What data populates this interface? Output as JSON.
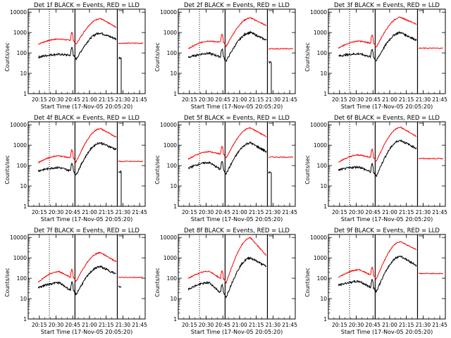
{
  "chart_data": {
    "type": "line",
    "time_ticks": [
      "20:15",
      "20:30",
      "20:45",
      "21:00",
      "21:15",
      "21:30",
      "21:45"
    ],
    "y_ticks": [
      "1",
      "10",
      "100",
      "1000",
      "10000"
    ],
    "ylabel": "Counts/sec",
    "xlabel": "Start Time (17-Nov-05 20:05:20)",
    "series_colors": {
      "events": "#000000",
      "lld": "#ff0000"
    },
    "time_range": [
      "20:05",
      "21:50"
    ],
    "ylim": [
      1,
      14000
    ],
    "vertical_markers": {
      "dotted": [
        "20:24"
      ],
      "solid": [
        "20:47",
        "21:25"
      ],
      "event_dotted_times": [
        "20:24"
      ]
    },
    "panels": [
      {
        "title": "Det 1f BLACK = Events, RED = LLD",
        "events": {
          "start": 62,
          "mid": 85,
          "dip": 48,
          "peak": 950,
          "end": 480,
          "after": 55,
          "tail_drop": 1
        },
        "lld": {
          "start": 270,
          "mid": 480,
          "dip": 260,
          "peak": 4800,
          "end": 1800,
          "after": 300
        }
      },
      {
        "title": "Det 2f BLACK = Events, RED = LLD",
        "events": {
          "start": 60,
          "mid": 95,
          "dip": 40,
          "peak": 1000,
          "end": 420,
          "after": 35,
          "tail_drop": 1
        },
        "lld": {
          "start": 160,
          "mid": 380,
          "dip": 210,
          "peak": 5200,
          "end": 2200,
          "after": 160
        }
      },
      {
        "title": "Det 3f BLACK = Events, RED = LLD",
        "events": {
          "start": 70,
          "mid": 90,
          "dip": 40,
          "peak": 1000,
          "end": 420,
          "after": 0,
          "tail_drop": 0
        },
        "lld": {
          "start": 170,
          "mid": 380,
          "dip": 190,
          "peak": 5500,
          "end": 2600,
          "after": 170
        }
      },
      {
        "title": "Det 4f BLACK = Events, RED = LLD",
        "events": {
          "start": 55,
          "mid": 80,
          "dip": 35,
          "peak": 1300,
          "end": 620,
          "after": 50,
          "tail_drop": 1
        },
        "lld": {
          "start": 140,
          "mid": 300,
          "dip": 150,
          "peak": 6500,
          "end": 2500,
          "after": 160
        }
      },
      {
        "title": "Det 5f BLACK = Events, RED = LLD",
        "events": {
          "start": 75,
          "mid": 140,
          "dip": 40,
          "peak": 1300,
          "end": 480,
          "after": 45,
          "tail_drop": 1
        },
        "lld": {
          "start": 210,
          "mid": 480,
          "dip": 230,
          "peak": 7000,
          "end": 2600,
          "after": 260
        }
      },
      {
        "title": "Det 6f BLACK = Events, RED = LLD",
        "events": {
          "start": 60,
          "mid": 85,
          "dip": 30,
          "peak": 1700,
          "end": 700,
          "after": 0,
          "tail_drop": 0
        },
        "lld": {
          "start": 150,
          "mid": 330,
          "dip": 160,
          "peak": 7500,
          "end": 2700,
          "after": 220
        }
      },
      {
        "title": "Det 7f BLACK = Events, RED = LLD",
        "events": {
          "start": 35,
          "mid": 60,
          "dip": 16,
          "peak": 370,
          "end": 160,
          "after": 40,
          "tail_drop": 0
        },
        "lld": {
          "start": 65,
          "mid": 210,
          "dip": 70,
          "peak": 1800,
          "end": 650,
          "after": 110
        }
      },
      {
        "title": "Det 8f BLACK = Events, RED = LLD",
        "events": {
          "start": 30,
          "mid": 60,
          "dip": 12,
          "peak": 1000,
          "end": 380,
          "after": 0,
          "tail_drop": 0
        },
        "lld": {
          "start": 100,
          "mid": 220,
          "dip": 60,
          "peak": 9500,
          "end": 1300,
          "after": 0
        }
      },
      {
        "title": "Det 9f BLACK = Events, RED = LLD",
        "events": {
          "start": 45,
          "mid": 70,
          "dip": 22,
          "peak": 1200,
          "end": 430,
          "after": 0,
          "tail_drop": 0
        },
        "lld": {
          "start": 110,
          "mid": 260,
          "dip": 90,
          "peak": 6200,
          "end": 2500,
          "after": 170
        }
      }
    ]
  }
}
